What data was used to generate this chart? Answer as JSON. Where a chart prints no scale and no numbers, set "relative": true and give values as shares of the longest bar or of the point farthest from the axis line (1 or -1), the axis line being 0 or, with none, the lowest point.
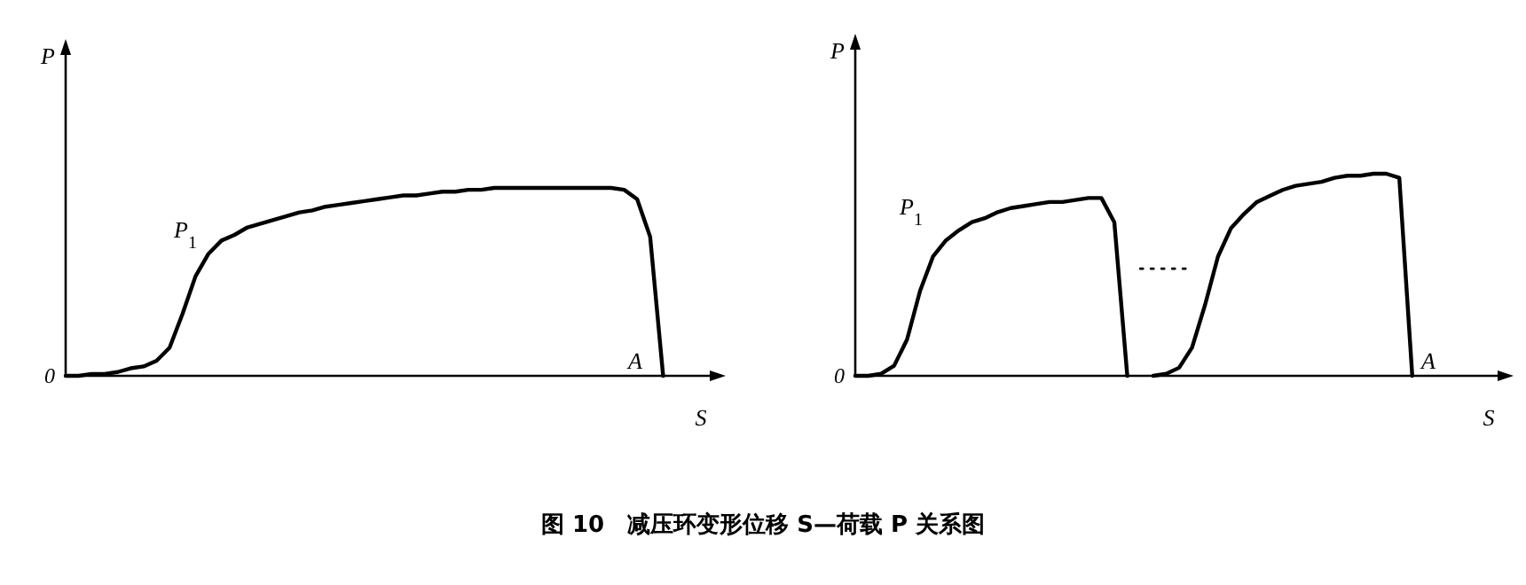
{
  "chart_data": [
    {
      "type": "line",
      "title": "图 10　减压环变形位移 S—荷载 P 关系图",
      "xlabel": "S",
      "ylabel": "P",
      "relative": true,
      "categories": [
        null,
        null,
        null,
        null,
        null,
        null,
        null,
        null,
        null,
        null,
        null,
        null,
        null,
        null,
        null,
        null,
        null,
        null,
        null,
        null,
        null,
        null,
        null,
        null,
        null,
        null,
        null,
        null,
        null,
        null,
        null,
        null,
        null,
        null,
        null,
        null,
        null,
        null,
        null,
        null,
        null,
        null,
        null,
        null,
        null,
        null,
        null,
        null,
        null,
        null,
        null
      ],
      "series": [
        {
          "color": "#000000",
          "values": [
            0,
            0,
            0.01,
            0.01,
            0.02,
            0.04,
            0.05,
            0.08,
            0.15,
            0.33,
            0.53,
            0.65,
            0.72,
            0.75,
            0.79,
            0.81,
            0.83,
            0.85,
            0.87,
            0.88,
            0.9,
            0.91,
            0.92,
            0.93,
            0.94,
            0.95,
            0.96,
            0.96,
            0.97,
            0.98,
            0.98,
            0.99,
            0.99,
            1,
            1,
            1,
            1,
            1,
            1,
            1,
            1,
            1,
            1,
            0.99,
            0.94,
            0.74,
            0,
            null,
            null,
            null,
            null
          ]
        }
      ],
      "annotations": [
        "0",
        "P$_{1}$",
        "A"
      ]
    },
    {
      "type": "line",
      "xlabel": "S",
      "ylabel": "P",
      "relative": true,
      "categories": [
        null,
        null,
        null,
        null,
        null,
        null,
        null,
        null,
        null,
        null,
        null,
        null,
        null,
        null,
        null,
        null,
        null,
        null,
        null,
        null,
        null,
        null,
        null,
        null,
        null,
        null,
        null,
        null,
        null,
        null,
        null,
        null,
        null,
        null,
        null,
        null,
        null,
        null,
        null,
        null,
        null,
        null,
        null,
        null,
        null,
        null,
        null,
        null,
        null,
        null,
        null
      ],
      "series": [
        {
          "color": "#000000",
          "values": [
            0,
            0,
            0.01,
            0.05,
            0.18,
            0.42,
            0.59,
            0.67,
            0.72,
            0.76,
            0.78,
            0.81,
            0.83,
            0.84,
            0.85,
            0.86,
            0.86,
            0.87,
            0.88,
            0.88,
            0.76,
            0,
            null,
            null,
            null,
            null,
            null,
            null,
            null,
            null,
            null,
            null,
            null,
            null,
            null,
            null,
            null,
            null,
            null,
            null,
            null,
            null,
            null,
            null,
            null,
            null,
            null,
            null,
            null,
            null,
            null
          ]
        },
        {
          "color": "#000000",
          "line_style": "dotted",
          "values": [
            null,
            null,
            null,
            null,
            null,
            null,
            null,
            null,
            null,
            null,
            null,
            null,
            null,
            null,
            null,
            null,
            null,
            null,
            null,
            null,
            null,
            null,
            0.53,
            0.53,
            0.53,
            0.53,
            0.53,
            null,
            null,
            null,
            null,
            null,
            null,
            null,
            null,
            null,
            null,
            null,
            null,
            null,
            null,
            null,
            null,
            null,
            null,
            null,
            null,
            null,
            null,
            null,
            null
          ]
        },
        {
          "color": "#000000",
          "values": [
            null,
            null,
            null,
            null,
            null,
            null,
            null,
            null,
            null,
            null,
            null,
            null,
            null,
            null,
            null,
            null,
            null,
            null,
            null,
            null,
            null,
            null,
            null,
            0,
            0.01,
            0.04,
            0.14,
            0.35,
            0.59,
            0.73,
            0.8,
            0.86,
            0.89,
            0.92,
            0.94,
            0.95,
            0.96,
            0.98,
            0.99,
            0.99,
            1,
            1,
            0.98,
            0,
            null,
            null,
            null,
            null,
            null,
            null,
            null
          ]
        }
      ],
      "annotations": [
        "0",
        "P$_{1}$",
        "A"
      ]
    }
  ]
}
